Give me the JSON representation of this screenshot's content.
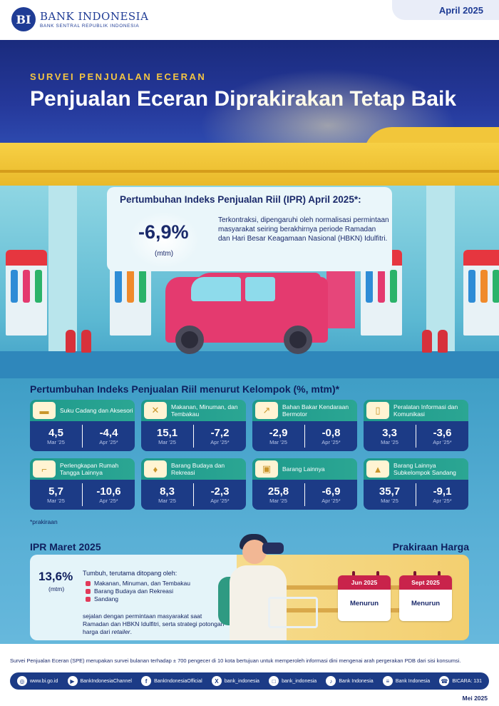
{
  "header": {
    "bank_name": "BANK INDONESIA",
    "bank_sub": "BANK SENTRAL REPUBLIK INDONESIA",
    "logo_mark": "BI",
    "month": "April 2025"
  },
  "title": {
    "kicker": "SURVEI PENJUALAN ECERAN",
    "main": "Penjualan Eceran Diprakirakan Tetap Baik"
  },
  "ipr": {
    "title": "Pertumbuhan Indeks Penjualan Riil (IPR) April 2025*:",
    "value": "-6,9%",
    "unit": "(mtm)",
    "description": "Terkontraksi, dipengaruhi oleh normalisasi permintaan masyarakat seiring berakhirnya periode Ramadan dan Hari Besar Keagamaan Nasional (HBKN) Idulfitri."
  },
  "groups": {
    "title": "Pertumbuhan Indeks Penjualan Riil menurut Kelompok (%, mtm)*",
    "note": "*prakiraan",
    "items": [
      {
        "label": "Suku Cadang dan Aksesori",
        "icon": "car-icon",
        "mar": "4,5",
        "apr": "-4,4",
        "mar_label": "Mar '25",
        "apr_label": "Apr '25*"
      },
      {
        "label": "Makanan, Minuman, dan Tembakau",
        "icon": "cutlery-icon",
        "mar": "15,1",
        "apr": "-7,2",
        "mar_label": "Mar '25",
        "apr_label": "Apr '25*"
      },
      {
        "label": "Bahan Bakar Kendaraan Bermotor",
        "icon": "fuel-nozzle-icon",
        "mar": "-2,9",
        "apr": "-0,8",
        "mar_label": "Mar '25",
        "apr_label": "Apr '25*"
      },
      {
        "label": "Peralatan Informasi dan Komunikasi",
        "icon": "phone-icon",
        "mar": "3,3",
        "apr": "-3,6",
        "mar_label": "Mar '25",
        "apr_label": "Apr '25*"
      },
      {
        "label": "Perlengkapan Rumah Tangga Lainnya",
        "icon": "chair-icon",
        "mar": "5,7",
        "apr": "-10,6",
        "mar_label": "Mar '25",
        "apr_label": "Apr '25*"
      },
      {
        "label": "Barang Budaya dan Rekreasi",
        "icon": "guitar-icon",
        "mar": "8,3",
        "apr": "-2,3",
        "mar_label": "Mar '25",
        "apr_label": "Apr '25*"
      },
      {
        "label": "Barang Lainnya",
        "icon": "shopping-bag-icon",
        "mar": "25,8",
        "apr": "-6,9",
        "mar_label": "Mar '25",
        "apr_label": "Apr '25*"
      },
      {
        "label": "Barang Lainnya Subkelompok Sandang",
        "icon": "shirt-icon",
        "mar": "35,7",
        "apr": "-9,1",
        "mar_label": "Mar '25",
        "apr_label": "Apr '25*"
      }
    ]
  },
  "maret": {
    "title": "IPR Maret 2025",
    "value": "13,6%",
    "unit": "(mtm)",
    "lead": "Tumbuh, terutama ditopang oleh:",
    "items": [
      "Makanan, Minuman, dan Tembakau",
      "Barang Budaya dan Rekreasi",
      "Sandang"
    ],
    "foot_main": "sejalan dengan permintaan masyarakat saat Ramadan dan HBKN Idulfitri, serta strategi potongan harga dari ",
    "foot_italic": "retailer",
    "foot_end": "."
  },
  "prakiraan": {
    "title": "Prakiraan Harga",
    "calendars": [
      {
        "month": "Jun 2025",
        "status": "Menurun"
      },
      {
        "month": "Sept 2025",
        "status": "Menurun"
      }
    ]
  },
  "footer": {
    "note": "Survei Penjualan Eceran (SPE) merupakan survei bulanan terhadap ± 700 pengecer di 10 kota bertujuan untuk memperoleh informasi dini mengenai arah pergerakan PDB dari sisi konsumsi.",
    "social": [
      {
        "icon": "globe-icon",
        "glyph": "◎",
        "label": "www.bi.go.id"
      },
      {
        "icon": "youtube-icon",
        "glyph": "▶",
        "label": "BankIndonesiaChannel"
      },
      {
        "icon": "facebook-icon",
        "glyph": "f",
        "label": "BankIndonesiaOfficial"
      },
      {
        "icon": "x-icon",
        "glyph": "X",
        "label": "bank_indonesia"
      },
      {
        "icon": "instagram-icon",
        "glyph": "□",
        "label": "bank_indonesia"
      },
      {
        "icon": "tiktok-icon",
        "glyph": "♪",
        "label": "Bank Indonesia"
      },
      {
        "icon": "spotify-icon",
        "glyph": "≡",
        "label": "Bank Indonesia"
      },
      {
        "icon": "bicara-icon",
        "glyph": "☎",
        "label": "BICARA: 131"
      }
    ],
    "date": "Mei 2025"
  }
}
